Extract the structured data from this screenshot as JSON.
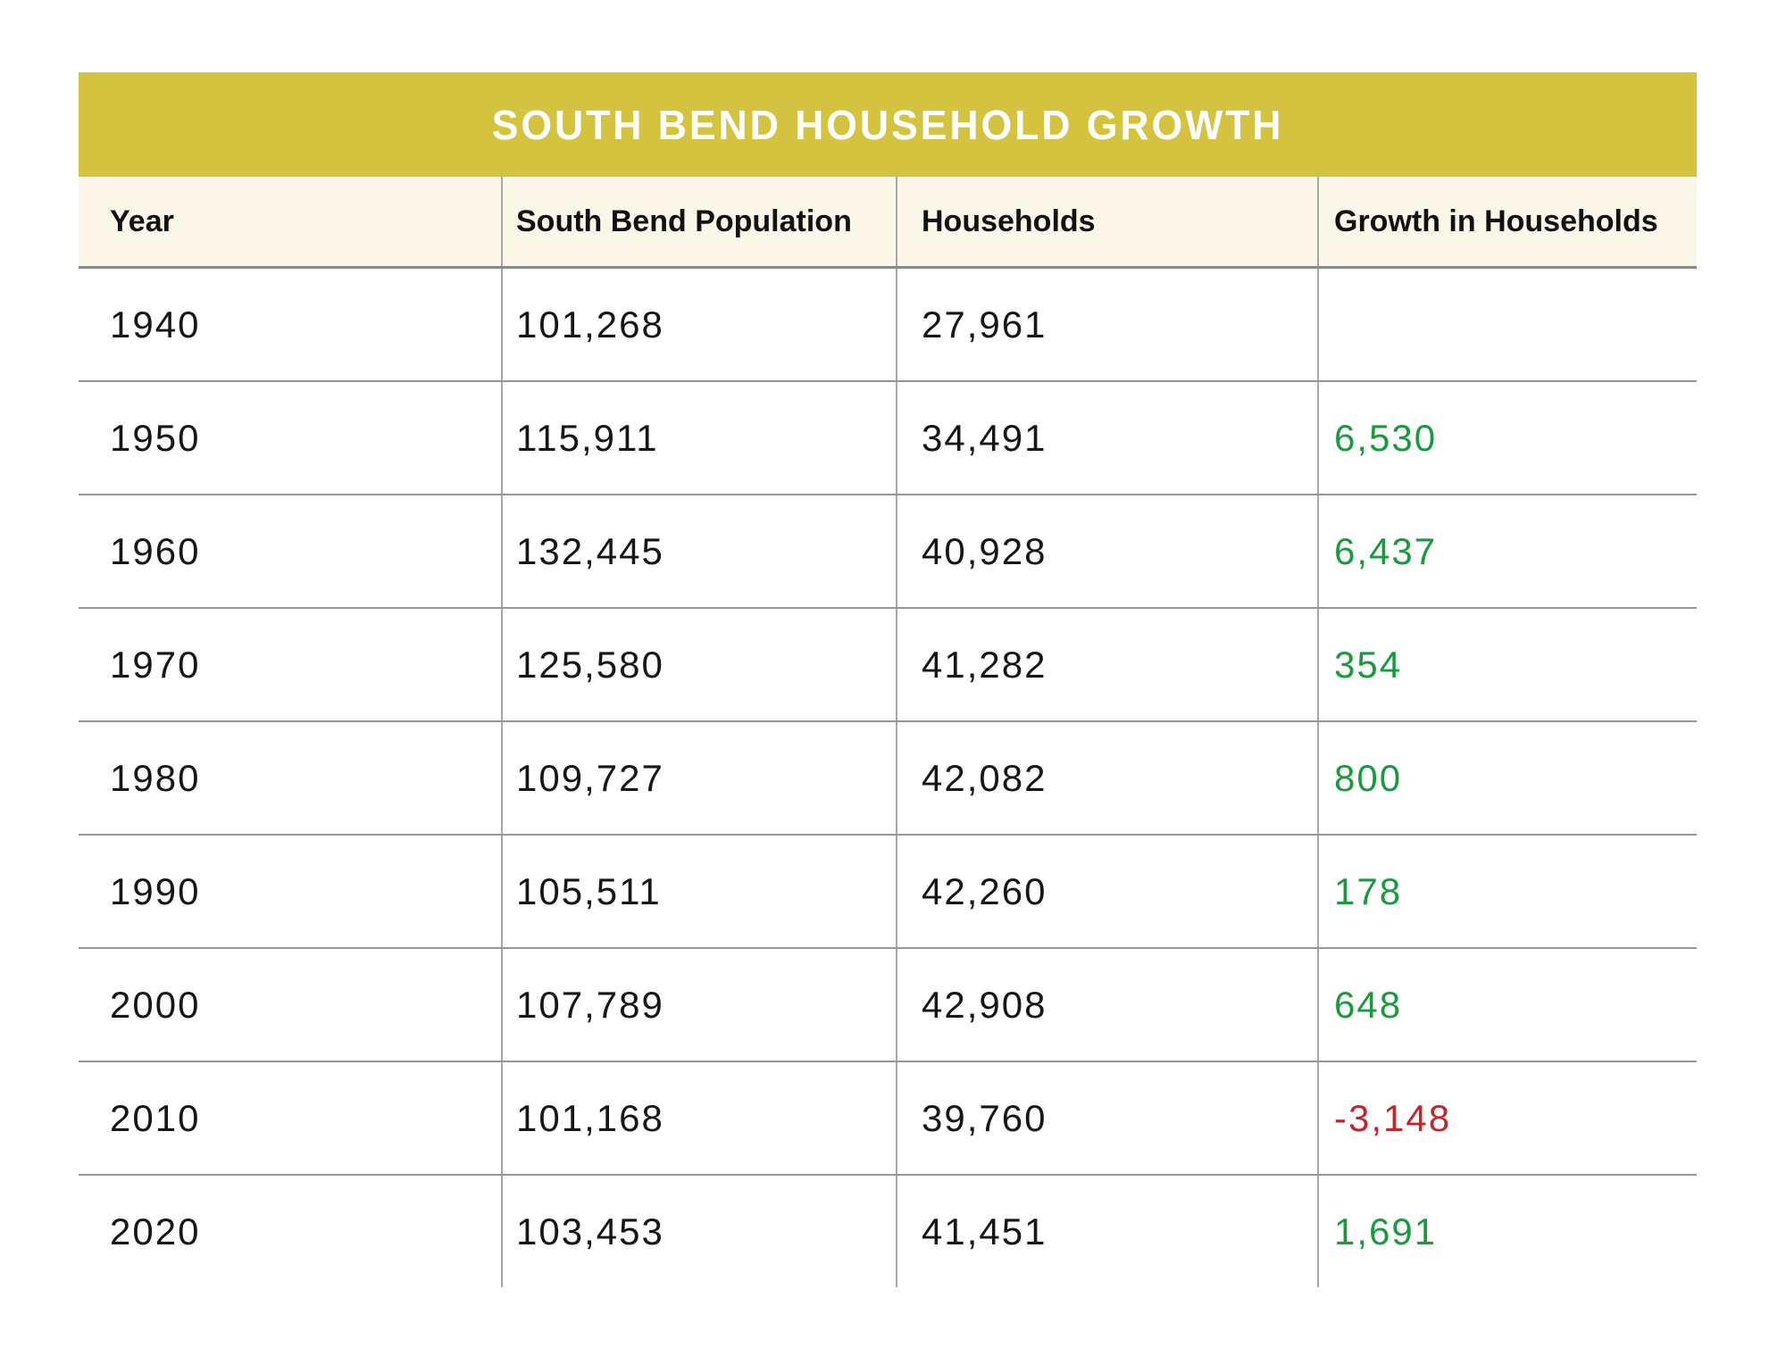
{
  "table": {
    "title": "SOUTH BEND HOUSEHOLD GROWTH",
    "columns": [
      "Year",
      "South Bend Population",
      "Households",
      "Growth in Households"
    ],
    "rows": [
      {
        "year": "1940",
        "population": "101,268",
        "households": "27,961",
        "growth": "",
        "trend": "none"
      },
      {
        "year": "1950",
        "population": "115,911",
        "households": "34,491",
        "growth": "6,530",
        "trend": "up"
      },
      {
        "year": "1960",
        "population": "132,445",
        "households": "40,928",
        "growth": "6,437",
        "trend": "up"
      },
      {
        "year": "1970",
        "population": "125,580",
        "households": "41,282",
        "growth": "354",
        "trend": "up"
      },
      {
        "year": "1980",
        "population": "109,727",
        "households": "42,082",
        "growth": "800",
        "trend": "up"
      },
      {
        "year": "1990",
        "population": "105,511",
        "households": "42,260",
        "growth": "178",
        "trend": "up"
      },
      {
        "year": "2000",
        "population": "107,789",
        "households": "42,908",
        "growth": "648",
        "trend": "up"
      },
      {
        "year": "2010",
        "population": "101,168",
        "households": "39,760",
        "growth": "-3,148",
        "trend": "down"
      },
      {
        "year": "2020",
        "population": "103,453",
        "households": "41,451",
        "growth": "1,691",
        "trend": "up"
      }
    ]
  },
  "colors": {
    "title_bg": "#d4c33e",
    "title_text": "#ffffff",
    "header_bg": "#faf6e8",
    "header_text": "#111111",
    "body_text": "#161616",
    "positive": "#189a3d",
    "negative": "#c1262c",
    "row_line": "#969696",
    "header_line": "#8a8a8a",
    "col_line": "#a8a8a8"
  }
}
